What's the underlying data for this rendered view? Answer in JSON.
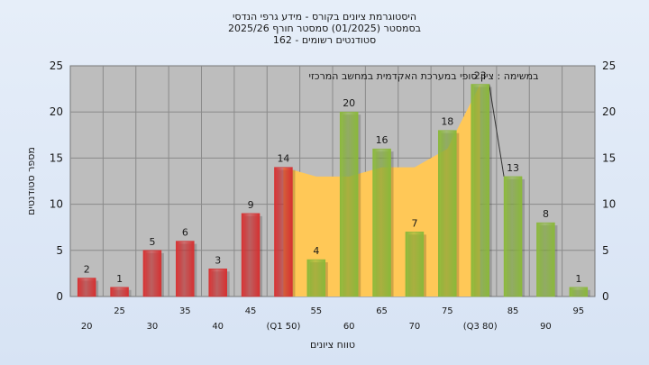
{
  "chart_data": {
    "type": "bar",
    "title_lines": [
      "היסטוגרמת ציונים בקורס - מידע גרפי הנדסי",
      "בסמסטר   (01/2025)  סמסטר חורף 2025/26",
      "סטודנטים רשומים - 162"
    ],
    "annotation": "במשימה : ציון סופי במערכת האקדמית במחשב המרכזי",
    "xlabel": "טווח ציונים",
    "ylabel": "מספר סטודנטים",
    "ylim": [
      0,
      25
    ],
    "yticks": [
      0,
      5,
      10,
      15,
      20,
      25
    ],
    "grid": true,
    "categories": [
      "20",
      "25",
      "30",
      "35",
      "40",
      "45",
      "(Q1 50)",
      "55",
      "60",
      "65",
      "70",
      "75",
      "(Q3 80)",
      "85",
      "90",
      "95"
    ],
    "values": [
      2,
      1,
      5,
      6,
      3,
      9,
      14,
      4,
      20,
      16,
      7,
      18,
      23,
      13,
      8,
      1
    ],
    "bar_colors": [
      "#d63031",
      "#d63031",
      "#d63031",
      "#d63031",
      "#d63031",
      "#d63031",
      "#d63031",
      "#8ab83a",
      "#8ab83a",
      "#8ab83a",
      "#8ab83a",
      "#8ab83a",
      "#8ab83a",
      "#8ab83a",
      "#8ab83a",
      "#8ab83a"
    ],
    "band_color": "#ffc857",
    "band_top": [
      {
        "x": "(Q1 50)",
        "y": 14
      },
      {
        "x": "55",
        "y": 13
      },
      {
        "x": "60",
        "y": 13
      },
      {
        "x": "65",
        "y": 14
      },
      {
        "x": "70",
        "y": 14
      },
      {
        "x": "75",
        "y": 16
      },
      {
        "x": "(Q3 80)",
        "y": 23
      }
    ]
  }
}
